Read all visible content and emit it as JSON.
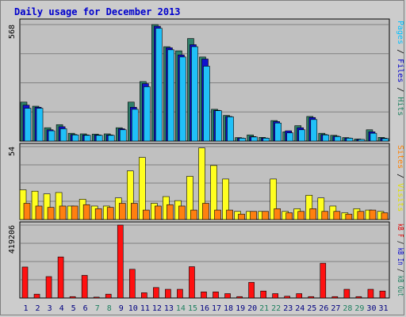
{
  "chart_data": {
    "type": "bar",
    "title": "Daily usage for December 2013",
    "x": [
      "1",
      "2",
      "3",
      "4",
      "5",
      "6",
      "7",
      "8",
      "9",
      "10",
      "11",
      "12",
      "13",
      "14",
      "15",
      "16",
      "17",
      "18",
      "19",
      "20",
      "21",
      "22",
      "23",
      "24",
      "25",
      "26",
      "27",
      "28",
      "29",
      "30",
      "31"
    ],
    "weekend_days": [
      "7",
      "8",
      "14",
      "15",
      "21",
      "22",
      "28",
      "29"
    ],
    "panels": [
      {
        "name": "pages-files-hits",
        "ymax": 568,
        "ymax_label": "568",
        "legend": [
          {
            "text": "Pages",
            "color": "#00c0ff"
          },
          {
            "text": " / ",
            "color": "#000000"
          },
          {
            "text": "Files",
            "color": "#0000cc"
          },
          {
            "text": " / ",
            "color": "#000000"
          },
          {
            "text": "Hits",
            "color": "#1f8060"
          }
        ],
        "series": [
          {
            "name": "Hits",
            "color": "#2f806a",
            "values": [
              190,
              170,
              65,
              80,
              38,
              35,
              34,
              35,
              65,
              190,
              290,
              568,
              460,
              440,
              500,
              410,
              155,
              125,
              17,
              30,
              18,
              100,
              45,
              75,
              120,
              38,
              28,
              17,
              10,
              55,
              18
            ]
          },
          {
            "name": "Files",
            "color": "#1010d0",
            "values": [
              175,
              165,
              55,
              70,
              32,
              30,
              30,
              30,
              60,
              165,
              280,
              560,
              455,
              420,
              470,
              400,
              150,
              120,
              15,
              22,
              15,
              95,
              50,
              65,
              115,
              32,
              24,
              15,
              8,
              45,
              14
            ]
          },
          {
            "name": "Pages",
            "color": "#20c0f8",
            "values": [
              160,
              160,
              50,
              60,
              30,
              28,
              28,
              28,
              55,
              155,
              265,
              550,
              445,
              410,
              460,
              365,
              148,
              118,
              14,
              20,
              14,
              88,
              40,
              55,
              105,
              30,
              22,
              14,
              8,
              38,
              12
            ]
          }
        ]
      },
      {
        "name": "sites-visits",
        "ymax": 54,
        "ymax_label": "54",
        "legend": [
          {
            "text": "Sites",
            "color": "#ff8000"
          },
          {
            "text": " / ",
            "color": "#000000"
          },
          {
            "text": "Visits",
            "color": "#e0e000"
          }
        ],
        "series": [
          {
            "name": "Visits",
            "color": "#ffff20",
            "values": [
              22,
              21,
              19,
              20,
              10,
              15,
              10,
              10,
              16,
              36,
              46,
              12,
              17,
              14,
              32,
              53,
              40,
              30,
              6,
              6,
              6,
              30,
              6,
              8,
              18,
              16,
              10,
              5,
              8,
              7,
              6
            ]
          },
          {
            "name": "Sites",
            "color": "#ff8010",
            "values": [
              12,
              10,
              9,
              10,
              10,
              11,
              8,
              9,
              12,
              12,
              7,
              10,
              11,
              10,
              7,
              12,
              7,
              7,
              4,
              6,
              6,
              8,
              5,
              6,
              8,
              6,
              6,
              4,
              6,
              7,
              5
            ]
          }
        ]
      },
      {
        "name": "kb",
        "ymax": 419206,
        "ymax_label": "419206",
        "legend": [
          {
            "text": "kB F",
            "color": "#e00000"
          },
          {
            "text": " / ",
            "color": "#000000"
          },
          {
            "text": "kB In",
            "color": "#0000cc"
          },
          {
            "text": " / ",
            "color": "#000000"
          },
          {
            "text": "kB Out",
            "color": "#1f8060"
          }
        ],
        "series": [
          {
            "name": "kB F",
            "color": "#ff1010",
            "values": [
              178000,
              22000,
              123000,
              236000,
              8000,
              130000,
              5000,
              22000,
              419206,
              165000,
              30000,
              60000,
              50000,
              50000,
              180000,
              35000,
              35000,
              25000,
              8000,
              90000,
              40000,
              25000,
              10000,
              25000,
              8000,
              200000,
              8000,
              50000,
              8000,
              50000,
              40000
            ]
          }
        ]
      }
    ]
  }
}
